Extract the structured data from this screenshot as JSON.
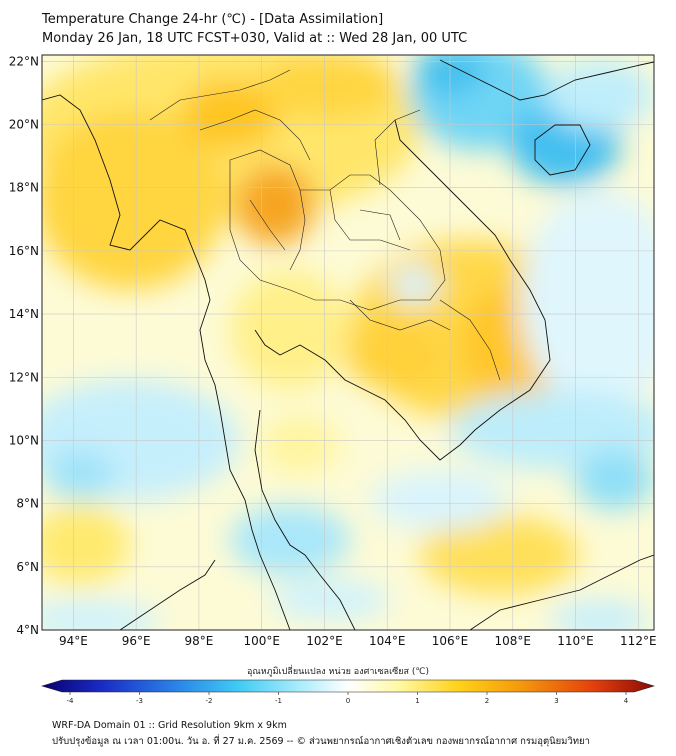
{
  "header": {
    "title_line1": "Temperature Change 24-hr (℃) - [Data Assimilation]",
    "title_line2": "Monday 26 Jan, 18 UTC FCST+030, Valid at :: Wed 28 Jan, 00 UTC"
  },
  "map": {
    "lat_labels": [
      "22°N",
      "20°N",
      "18°N",
      "16°N",
      "14°N",
      "12°N",
      "10°N",
      "8°N",
      "6°N",
      "4°N"
    ],
    "lat_values": [
      22,
      20,
      18,
      16,
      14,
      12,
      10,
      8,
      6,
      4
    ],
    "lon_labels": [
      "94°E",
      "96°E",
      "98°E",
      "100°E",
      "102°E",
      "104°E",
      "106°E",
      "108°E",
      "110°E",
      "112°E"
    ],
    "lon_values": [
      94,
      96,
      98,
      100,
      102,
      104,
      106,
      108,
      110,
      112
    ],
    "lat_range": [
      4,
      22.2
    ],
    "lon_range": [
      93,
      112.5
    ]
  },
  "colorbar": {
    "label": "อุณหภูมิเปลี่ยนแปลง หน่วย องศาเซลเซียส (℃)",
    "ticks": [
      "-4",
      "-3",
      "-2",
      "-1",
      "0",
      "1",
      "2",
      "3",
      "4"
    ],
    "range": [
      -4,
      4
    ],
    "colors": [
      "#08006e",
      "#1b2cc8",
      "#2a84e8",
      "#3fcbf4",
      "#a9ecfb",
      "#ffffff",
      "#fff9a8",
      "#ffd21a",
      "#f59a0c",
      "#e4400c",
      "#8a0a06"
    ]
  },
  "footer": {
    "line1": "WRF-DA Domain 01 :: Grid Resolution 9km x 9km",
    "line2": "ปรับปรุงข้อมูล ณ เวลา 01:00น. วัน อ. ที่ 27 ม.ค. 2569 -- © ส่วนพยากรณ์อากาศเชิงตัวเลข กองพยากรณ์อากาศ กรมอุตุนิยมวิทยา"
  }
}
